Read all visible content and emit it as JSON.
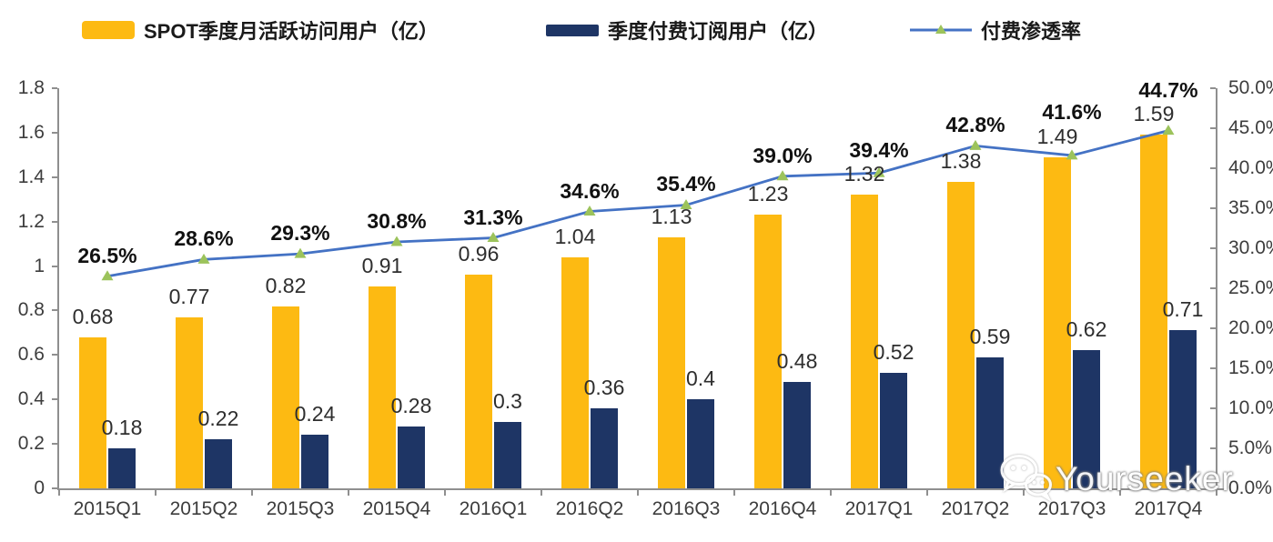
{
  "watermark": {
    "text": "Yourseeker",
    "icon": "wechat-icon"
  },
  "chart_data": {
    "type": "bar+line combo",
    "categories": [
      "2015Q1",
      "2015Q2",
      "2015Q3",
      "2015Q4",
      "2016Q1",
      "2016Q2",
      "2016Q3",
      "2016Q4",
      "2017Q1",
      "2017Q2",
      "2017Q3",
      "2017Q4"
    ],
    "series": [
      {
        "name": "SPOT季度月活跃访问用户（亿）",
        "type": "bar",
        "axis": "left",
        "color": "#FDBA12",
        "values": [
          0.68,
          0.77,
          0.82,
          0.91,
          0.96,
          1.04,
          1.13,
          1.23,
          1.32,
          1.38,
          1.49,
          1.59
        ],
        "labels": [
          "0.68",
          "0.77",
          "0.82",
          "0.91",
          "0.96",
          "1.04",
          "1.13",
          "1.23",
          "1.32",
          "1.38",
          "1.49",
          "1.59"
        ]
      },
      {
        "name": "季度付费订阅用户（亿）",
        "type": "bar",
        "axis": "left",
        "color": "#1E3565",
        "values": [
          0.18,
          0.22,
          0.24,
          0.28,
          0.3,
          0.36,
          0.4,
          0.48,
          0.52,
          0.59,
          0.62,
          0.71
        ],
        "labels": [
          "0.18",
          "0.22",
          "0.24",
          "0.28",
          "0.3",
          "0.36",
          "0.4",
          "0.48",
          "0.52",
          "0.59",
          "0.62",
          "0.71"
        ]
      },
      {
        "name": "付费渗透率",
        "type": "line",
        "axis": "right",
        "color": "#4472C4",
        "marker": "triangle",
        "marker_color": "#9CC35B",
        "values": [
          26.5,
          28.6,
          29.3,
          30.8,
          31.3,
          34.6,
          35.4,
          39.0,
          39.4,
          42.8,
          41.6,
          44.7
        ],
        "labels": [
          "26.5%",
          "28.6%",
          "29.3%",
          "30.8%",
          "31.3%",
          "34.6%",
          "35.4%",
          "39.0%",
          "39.4%",
          "42.8%",
          "41.6%",
          "44.7%"
        ]
      }
    ],
    "left_axis": {
      "min": 0,
      "max": 1.8,
      "ticks": [
        "0",
        "0.2",
        "0.4",
        "0.6",
        "0.8",
        "1",
        "1.2",
        "1.4",
        "1.6",
        "1.8"
      ]
    },
    "right_axis": {
      "min": 0,
      "max": 50,
      "ticks": [
        "0.0%",
        "5.0%",
        "10.0%",
        "15.0%",
        "20.0%",
        "25.0%",
        "30.0%",
        "35.0%",
        "40.0%",
        "45.0%",
        "50.0%"
      ]
    },
    "grid": false,
    "legend_position": "top"
  }
}
